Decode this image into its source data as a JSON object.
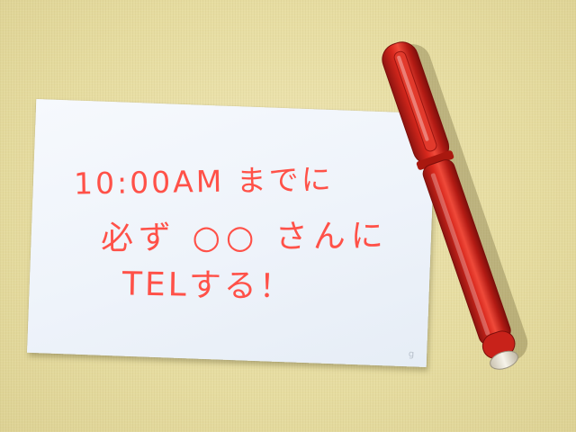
{
  "note": {
    "lines": [
      "10:00AM までに",
      "必ず ○○ さんに",
      "TELする！"
    ],
    "ink_color": "#ff5148"
  },
  "card": {
    "corner_mark": "g",
    "color": "#eef3fa"
  },
  "pen": {
    "icon": "red-felt-tip-pen",
    "color": "#c81f17"
  },
  "background": {
    "color": "#e8dfa6"
  }
}
